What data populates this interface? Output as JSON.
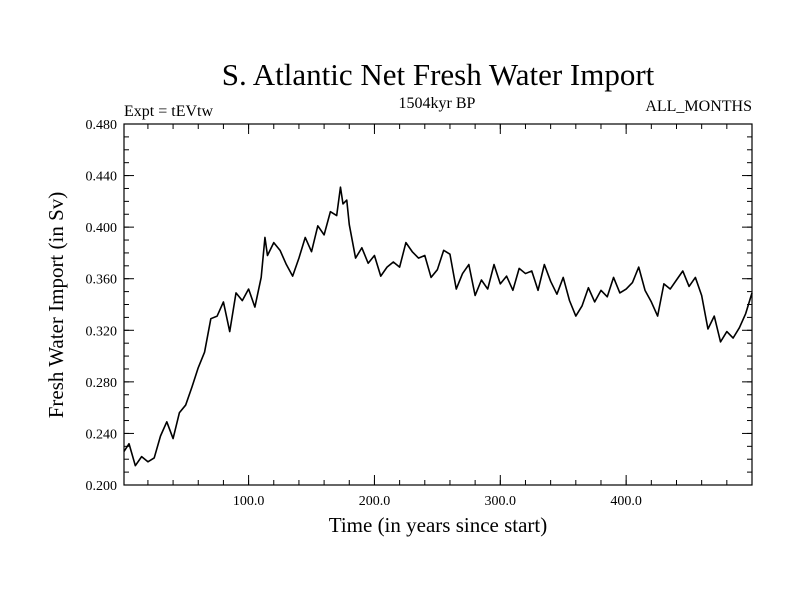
{
  "header": {
    "title": "S. Atlantic Net Fresh Water Import",
    "left_label": "Expt = tEVtw",
    "center_label": "1504kyr BP",
    "right_label": "ALL_MONTHS"
  },
  "chart_data": {
    "type": "line",
    "title": "S. Atlantic Net Fresh Water Import",
    "xlabel": "Time (in years since start)",
    "ylabel": "Fresh Water Import (in Sv)",
    "xlim": [
      1,
      500
    ],
    "ylim": [
      0.2,
      0.48
    ],
    "x_ticks": [
      100,
      200,
      300,
      400
    ],
    "x_tick_labels": [
      "100.0",
      "200.0",
      "300.0",
      "400.0"
    ],
    "y_ticks": [
      0.2,
      0.24,
      0.28,
      0.32,
      0.36,
      0.4,
      0.44,
      0.48
    ],
    "y_tick_labels": [
      "0.200",
      "0.240",
      "0.280",
      "0.320",
      "0.360",
      "0.400",
      "0.440",
      "0.480"
    ],
    "x_minor_step": 20,
    "y_minor_step": 0.01,
    "grid": false,
    "series": [
      {
        "name": "Net fresh water import",
        "color": "#000000",
        "x": [
          1,
          5,
          10,
          15,
          20,
          25,
          30,
          35,
          40,
          45,
          50,
          55,
          60,
          65,
          70,
          75,
          80,
          85,
          90,
          95,
          100,
          105,
          110,
          113,
          115,
          120,
          125,
          130,
          135,
          140,
          145,
          150,
          155,
          160,
          165,
          170,
          173,
          175,
          178,
          180,
          185,
          190,
          195,
          200,
          205,
          210,
          215,
          220,
          225,
          230,
          235,
          240,
          245,
          250,
          255,
          260,
          265,
          270,
          275,
          280,
          285,
          290,
          295,
          300,
          305,
          310,
          315,
          320,
          325,
          330,
          335,
          340,
          345,
          350,
          355,
          360,
          365,
          370,
          375,
          380,
          385,
          390,
          395,
          400,
          405,
          410,
          415,
          420,
          425,
          430,
          435,
          440,
          445,
          450,
          455,
          460,
          465,
          470,
          475,
          480,
          485,
          490,
          495,
          500
        ],
        "values": [
          0.226,
          0.232,
          0.215,
          0.222,
          0.218,
          0.221,
          0.238,
          0.249,
          0.236,
          0.256,
          0.262,
          0.276,
          0.291,
          0.303,
          0.329,
          0.331,
          0.342,
          0.319,
          0.349,
          0.343,
          0.352,
          0.338,
          0.361,
          0.392,
          0.378,
          0.388,
          0.382,
          0.371,
          0.362,
          0.376,
          0.392,
          0.381,
          0.401,
          0.394,
          0.412,
          0.409,
          0.431,
          0.418,
          0.421,
          0.402,
          0.376,
          0.384,
          0.372,
          0.378,
          0.362,
          0.369,
          0.373,
          0.369,
          0.388,
          0.381,
          0.376,
          0.378,
          0.361,
          0.367,
          0.382,
          0.379,
          0.352,
          0.364,
          0.371,
          0.347,
          0.359,
          0.352,
          0.371,
          0.356,
          0.362,
          0.351,
          0.368,
          0.364,
          0.366,
          0.351,
          0.371,
          0.358,
          0.348,
          0.361,
          0.343,
          0.331,
          0.339,
          0.353,
          0.342,
          0.351,
          0.346,
          0.361,
          0.349,
          0.352,
          0.357,
          0.369,
          0.351,
          0.342,
          0.331,
          0.356,
          0.352,
          0.359,
          0.366,
          0.354,
          0.361,
          0.347,
          0.321,
          0.331,
          0.311,
          0.319,
          0.314,
          0.322,
          0.333,
          0.349
        ]
      }
    ]
  }
}
